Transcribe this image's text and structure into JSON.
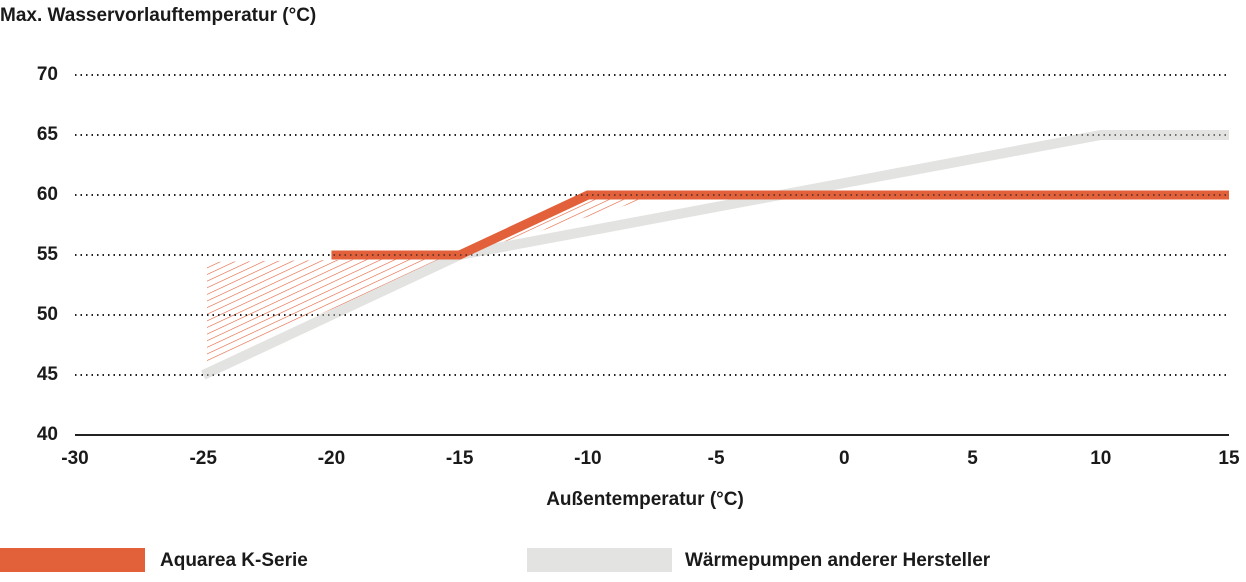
{
  "chart_data": {
    "type": "line",
    "title": "Max. Wasservorlauftemperatur (°C)",
    "x_label": "Außentemperatur (°C)",
    "xlim": [
      -30,
      15
    ],
    "xticks": [
      -30,
      -25,
      -20,
      -15,
      -10,
      -5,
      0,
      5,
      10,
      15
    ],
    "ylim": [
      40,
      70
    ],
    "yticks": [
      40,
      45,
      50,
      55,
      60,
      65,
      70
    ],
    "grid": true,
    "series": [
      {
        "name": "Wärmepumpen anderer Hersteller",
        "color": "#e3e3e1",
        "x": [
          -25,
          -15,
          10,
          15
        ],
        "values": [
          45,
          55,
          65,
          65
        ]
      },
      {
        "name": "Aquarea K-Serie",
        "color": "#e2603a",
        "x": [
          -20,
          -15,
          -10,
          15
        ],
        "values": [
          55,
          55,
          60,
          60
        ]
      }
    ]
  }
}
